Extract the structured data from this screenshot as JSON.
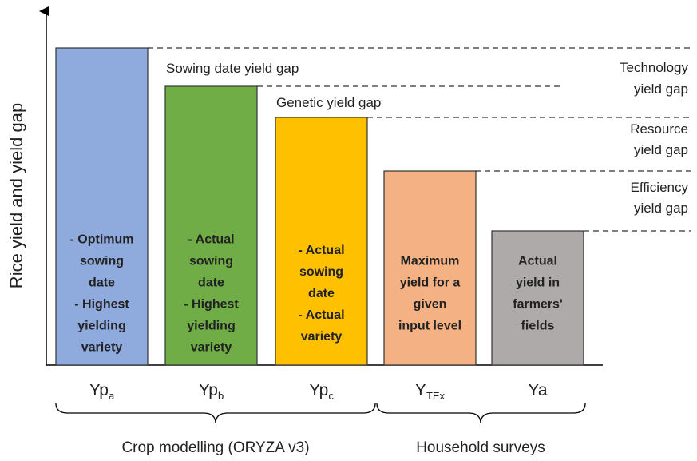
{
  "y_axis_label": "Rice yield and yield gap",
  "gap_labels": {
    "sowing": "Sowing date yield gap",
    "genetic": "Genetic yield gap"
  },
  "right_labels": [
    [
      "Technology",
      "yield gap"
    ],
    [
      "Resource",
      "yield gap"
    ],
    [
      "Efficiency",
      "yield gap"
    ]
  ],
  "bars": [
    {
      "text": [
        "- Optimum",
        "sowing",
        "date",
        "- Highest",
        "yielding",
        "variety"
      ],
      "label": {
        "main": "Yp",
        "sub": "a"
      }
    },
    {
      "text": [
        "- Actual",
        "sowing",
        "date",
        "- Highest",
        "yielding",
        "variety"
      ],
      "label": {
        "main": "Yp",
        "sub": "b"
      }
    },
    {
      "text": [
        "- Actual",
        "sowing",
        "date",
        "- Actual",
        "variety"
      ],
      "label": {
        "main": "Yp",
        "sub": "c"
      }
    },
    {
      "text": [
        "Maximum",
        "yield for a",
        "given",
        "input level"
      ],
      "label": {
        "main": "Y",
        "sub": "TEx"
      }
    },
    {
      "text": [
        "Actual",
        "yield in",
        "farmers'",
        "fields"
      ],
      "label": {
        "main": "Ya"
      }
    }
  ],
  "groups": [
    "Crop modelling (ORYZA v3)",
    "Household surveys"
  ]
}
